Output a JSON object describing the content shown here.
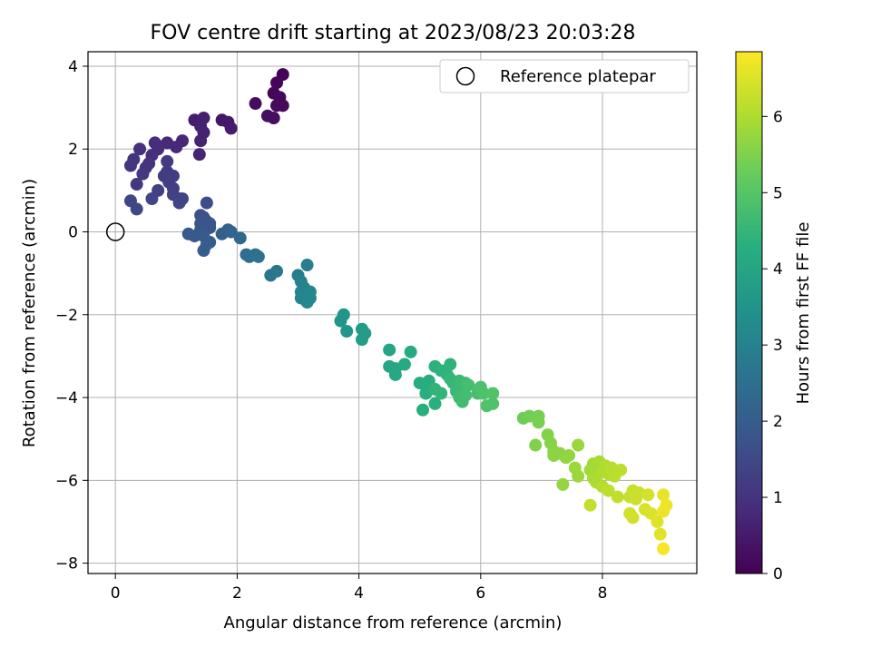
{
  "chart_data": {
    "type": "scatter",
    "title": "FOV centre drift starting at 2023/08/23 20:03:28",
    "xlabel": "Angular distance from reference (arcmin)",
    "ylabel": "Rotation from reference (arcmin)",
    "xlim": [
      -0.45,
      9.55
    ],
    "ylim": [
      -8.25,
      4.35
    ],
    "xticks": [
      0,
      2,
      4,
      6,
      8
    ],
    "yticks": [
      -8,
      -6,
      -4,
      -2,
      0,
      2,
      4
    ],
    "x_tick_labels": [
      "0",
      "2",
      "4",
      "6",
      "8"
    ],
    "y_tick_labels": [
      "−8",
      "−6",
      "−4",
      "−2",
      "0",
      "2",
      "4"
    ],
    "grid": true,
    "legend": {
      "placement": "top-right",
      "entries": [
        "Reference platepar"
      ]
    },
    "reference_point": {
      "x": 0,
      "y": 0,
      "label": "Reference platepar"
    },
    "colorbar": {
      "label": "Hours from first FF file",
      "range": [
        0,
        6.85
      ],
      "ticks": [
        0,
        1,
        2,
        3,
        4,
        5,
        6
      ],
      "tick_labels": [
        "0",
        "1",
        "2",
        "3",
        "4",
        "5",
        "6"
      ],
      "colormap": "viridis"
    },
    "points": [
      {
        "x": 2.75,
        "y": 3.8,
        "c": 0.05
      },
      {
        "x": 2.65,
        "y": 3.6,
        "c": 0.1
      },
      {
        "x": 2.6,
        "y": 3.35,
        "c": 0.12
      },
      {
        "x": 2.7,
        "y": 3.25,
        "c": 0.15
      },
      {
        "x": 2.75,
        "y": 3.05,
        "c": 0.18
      },
      {
        "x": 2.65,
        "y": 3.05,
        "c": 0.2
      },
      {
        "x": 2.3,
        "y": 3.1,
        "c": 0.22
      },
      {
        "x": 2.5,
        "y": 2.8,
        "c": 0.25
      },
      {
        "x": 2.6,
        "y": 2.75,
        "c": 0.28
      },
      {
        "x": 1.75,
        "y": 2.7,
        "c": 0.4
      },
      {
        "x": 1.85,
        "y": 2.65,
        "c": 0.45
      },
      {
        "x": 1.9,
        "y": 2.5,
        "c": 0.5
      },
      {
        "x": 1.3,
        "y": 2.7,
        "c": 0.55
      },
      {
        "x": 1.45,
        "y": 2.75,
        "c": 0.6
      },
      {
        "x": 1.4,
        "y": 2.55,
        "c": 0.62
      },
      {
        "x": 1.45,
        "y": 2.4,
        "c": 0.65
      },
      {
        "x": 1.4,
        "y": 2.2,
        "c": 0.68
      },
      {
        "x": 1.38,
        "y": 1.87,
        "c": 0.7
      },
      {
        "x": 1.1,
        "y": 2.2,
        "c": 0.75
      },
      {
        "x": 1.0,
        "y": 2.05,
        "c": 0.78
      },
      {
        "x": 0.85,
        "y": 2.15,
        "c": 0.8
      },
      {
        "x": 0.65,
        "y": 2.15,
        "c": 0.85
      },
      {
        "x": 0.7,
        "y": 2.0,
        "c": 0.88
      },
      {
        "x": 0.6,
        "y": 1.85,
        "c": 0.9
      },
      {
        "x": 0.4,
        "y": 2.0,
        "c": 0.95
      },
      {
        "x": 0.55,
        "y": 1.65,
        "c": 1.0
      },
      {
        "x": 0.5,
        "y": 1.55,
        "c": 1.02
      },
      {
        "x": 0.3,
        "y": 1.75,
        "c": 1.05
      },
      {
        "x": 0.25,
        "y": 1.6,
        "c": 1.08
      },
      {
        "x": 0.45,
        "y": 1.4,
        "c": 1.1
      },
      {
        "x": 0.35,
        "y": 1.15,
        "c": 1.12
      },
      {
        "x": 0.85,
        "y": 1.7,
        "c": 1.15
      },
      {
        "x": 0.85,
        "y": 1.45,
        "c": 1.18
      },
      {
        "x": 0.8,
        "y": 1.35,
        "c": 1.2
      },
      {
        "x": 0.95,
        "y": 1.35,
        "c": 1.22
      },
      {
        "x": 0.88,
        "y": 1.2,
        "c": 1.25
      },
      {
        "x": 0.95,
        "y": 1.05,
        "c": 1.28
      },
      {
        "x": 0.7,
        "y": 1.0,
        "c": 1.3
      },
      {
        "x": 0.95,
        "y": 0.9,
        "c": 1.32
      },
      {
        "x": 1.05,
        "y": 0.8,
        "c": 1.35
      },
      {
        "x": 1.1,
        "y": 0.8,
        "c": 1.38
      },
      {
        "x": 1.05,
        "y": 0.7,
        "c": 1.4
      },
      {
        "x": 0.6,
        "y": 0.8,
        "c": 1.42
      },
      {
        "x": 0.25,
        "y": 0.75,
        "c": 1.45
      },
      {
        "x": 0.35,
        "y": 0.55,
        "c": 1.48
      },
      {
        "x": 1.5,
        "y": 0.7,
        "c": 1.6
      },
      {
        "x": 1.4,
        "y": 0.4,
        "c": 1.7
      },
      {
        "x": 1.45,
        "y": 0.35,
        "c": 1.72
      },
      {
        "x": 1.5,
        "y": 0.25,
        "c": 1.75
      },
      {
        "x": 1.4,
        "y": 0.2,
        "c": 1.78
      },
      {
        "x": 1.55,
        "y": 0.2,
        "c": 1.8
      },
      {
        "x": 1.55,
        "y": 0.1,
        "c": 1.82
      },
      {
        "x": 1.45,
        "y": 0.05,
        "c": 1.85
      },
      {
        "x": 1.4,
        "y": 0.05,
        "c": 1.88
      },
      {
        "x": 1.2,
        "y": -0.05,
        "c": 1.9
      },
      {
        "x": 1.3,
        "y": -0.1,
        "c": 1.92
      },
      {
        "x": 1.45,
        "y": -0.1,
        "c": 1.95
      },
      {
        "x": 1.55,
        "y": -0.25,
        "c": 1.98
      },
      {
        "x": 1.5,
        "y": -0.3,
        "c": 2.0
      },
      {
        "x": 1.45,
        "y": -0.45,
        "c": 2.02
      },
      {
        "x": 1.75,
        "y": -0.05,
        "c": 2.1
      },
      {
        "x": 1.85,
        "y": 0.05,
        "c": 2.15
      },
      {
        "x": 1.9,
        "y": 0.0,
        "c": 2.2
      },
      {
        "x": 2.05,
        "y": -0.15,
        "c": 2.3
      },
      {
        "x": 2.15,
        "y": -0.55,
        "c": 2.4
      },
      {
        "x": 2.2,
        "y": -0.6,
        "c": 2.45
      },
      {
        "x": 2.3,
        "y": -0.55,
        "c": 2.5
      },
      {
        "x": 2.35,
        "y": -0.6,
        "c": 2.55
      },
      {
        "x": 2.55,
        "y": -1.05,
        "c": 2.65
      },
      {
        "x": 2.65,
        "y": -0.95,
        "c": 2.7
      },
      {
        "x": 3.0,
        "y": -1.05,
        "c": 2.85
      },
      {
        "x": 3.15,
        "y": -0.8,
        "c": 2.9
      },
      {
        "x": 3.05,
        "y": -1.2,
        "c": 2.95
      },
      {
        "x": 3.1,
        "y": -1.35,
        "c": 3.0
      },
      {
        "x": 3.05,
        "y": -1.45,
        "c": 3.02
      },
      {
        "x": 3.15,
        "y": -1.5,
        "c": 3.05
      },
      {
        "x": 3.2,
        "y": -1.6,
        "c": 3.08
      },
      {
        "x": 3.05,
        "y": -1.6,
        "c": 3.1
      },
      {
        "x": 3.15,
        "y": -1.7,
        "c": 3.12
      },
      {
        "x": 3.2,
        "y": -1.45,
        "c": 3.14
      },
      {
        "x": 3.7,
        "y": -2.15,
        "c": 3.5
      },
      {
        "x": 3.75,
        "y": -2.0,
        "c": 3.55
      },
      {
        "x": 3.8,
        "y": -2.4,
        "c": 3.58
      },
      {
        "x": 4.05,
        "y": -2.35,
        "c": 3.7
      },
      {
        "x": 4.1,
        "y": -2.45,
        "c": 3.75
      },
      {
        "x": 4.05,
        "y": -2.6,
        "c": 3.78
      },
      {
        "x": 4.5,
        "y": -2.85,
        "c": 4.0
      },
      {
        "x": 4.5,
        "y": -3.25,
        "c": 4.05
      },
      {
        "x": 4.6,
        "y": -3.3,
        "c": 4.08
      },
      {
        "x": 4.6,
        "y": -3.45,
        "c": 4.1
      },
      {
        "x": 4.75,
        "y": -3.2,
        "c": 4.12
      },
      {
        "x": 4.85,
        "y": -2.9,
        "c": 4.15
      },
      {
        "x": 5.0,
        "y": -3.65,
        "c": 4.2
      },
      {
        "x": 5.1,
        "y": -3.7,
        "c": 4.22
      },
      {
        "x": 5.15,
        "y": -3.6,
        "c": 4.25
      },
      {
        "x": 5.1,
        "y": -3.9,
        "c": 4.28
      },
      {
        "x": 5.05,
        "y": -4.3,
        "c": 4.3
      },
      {
        "x": 5.25,
        "y": -4.15,
        "c": 4.32
      },
      {
        "x": 5.25,
        "y": -3.25,
        "c": 4.35
      },
      {
        "x": 5.35,
        "y": -3.35,
        "c": 4.38
      },
      {
        "x": 5.45,
        "y": -3.45,
        "c": 4.4
      },
      {
        "x": 5.5,
        "y": -3.2,
        "c": 4.42
      },
      {
        "x": 5.25,
        "y": -3.8,
        "c": 4.45
      },
      {
        "x": 5.35,
        "y": -3.9,
        "c": 4.48
      },
      {
        "x": 5.5,
        "y": -3.55,
        "c": 4.5
      },
      {
        "x": 5.55,
        "y": -3.65,
        "c": 4.52
      },
      {
        "x": 5.6,
        "y": -3.7,
        "c": 4.55
      },
      {
        "x": 5.65,
        "y": -3.6,
        "c": 4.58
      },
      {
        "x": 5.6,
        "y": -3.85,
        "c": 4.6
      },
      {
        "x": 5.7,
        "y": -3.75,
        "c": 4.62
      },
      {
        "x": 5.75,
        "y": -3.65,
        "c": 4.65
      },
      {
        "x": 5.65,
        "y": -4.0,
        "c": 4.68
      },
      {
        "x": 5.7,
        "y": -4.1,
        "c": 4.7
      },
      {
        "x": 5.75,
        "y": -3.95,
        "c": 4.72
      },
      {
        "x": 5.8,
        "y": -3.7,
        "c": 4.75
      },
      {
        "x": 5.95,
        "y": -3.9,
        "c": 4.8
      },
      {
        "x": 6.0,
        "y": -3.75,
        "c": 4.85
      },
      {
        "x": 6.05,
        "y": -3.9,
        "c": 4.88
      },
      {
        "x": 6.1,
        "y": -4.2,
        "c": 4.9
      },
      {
        "x": 6.2,
        "y": -4.15,
        "c": 4.92
      },
      {
        "x": 6.2,
        "y": -3.9,
        "c": 4.95
      },
      {
        "x": 6.7,
        "y": -4.5,
        "c": 5.3
      },
      {
        "x": 6.8,
        "y": -4.45,
        "c": 5.35
      },
      {
        "x": 6.95,
        "y": -4.45,
        "c": 5.4
      },
      {
        "x": 6.95,
        "y": -4.6,
        "c": 5.42
      },
      {
        "x": 6.9,
        "y": -5.15,
        "c": 5.5
      },
      {
        "x": 7.1,
        "y": -4.9,
        "c": 5.55
      },
      {
        "x": 7.15,
        "y": -5.1,
        "c": 5.58
      },
      {
        "x": 7.2,
        "y": -5.3,
        "c": 5.6
      },
      {
        "x": 7.2,
        "y": -5.4,
        "c": 5.62
      },
      {
        "x": 7.3,
        "y": -5.35,
        "c": 5.65
      },
      {
        "x": 7.4,
        "y": -5.45,
        "c": 5.68
      },
      {
        "x": 7.45,
        "y": -5.4,
        "c": 5.7
      },
      {
        "x": 7.35,
        "y": -6.1,
        "c": 5.72
      },
      {
        "x": 7.6,
        "y": -5.15,
        "c": 5.78
      },
      {
        "x": 7.55,
        "y": -5.7,
        "c": 5.8
      },
      {
        "x": 7.6,
        "y": -5.9,
        "c": 5.82
      },
      {
        "x": 7.8,
        "y": -5.75,
        "c": 5.85
      },
      {
        "x": 7.85,
        "y": -5.6,
        "c": 5.88
      },
      {
        "x": 7.9,
        "y": -5.7,
        "c": 5.9
      },
      {
        "x": 7.95,
        "y": -5.55,
        "c": 5.92
      },
      {
        "x": 7.85,
        "y": -5.95,
        "c": 5.95
      },
      {
        "x": 7.9,
        "y": -6.05,
        "c": 5.98
      },
      {
        "x": 8.0,
        "y": -5.8,
        "c": 6.0
      },
      {
        "x": 8.05,
        "y": -5.65,
        "c": 6.02
      },
      {
        "x": 8.1,
        "y": -5.85,
        "c": 6.05
      },
      {
        "x": 8.0,
        "y": -6.15,
        "c": 6.08
      },
      {
        "x": 8.15,
        "y": -5.7,
        "c": 6.1
      },
      {
        "x": 8.2,
        "y": -5.9,
        "c": 6.12
      },
      {
        "x": 8.3,
        "y": -5.75,
        "c": 6.15
      },
      {
        "x": 8.1,
        "y": -6.25,
        "c": 6.18
      },
      {
        "x": 8.25,
        "y": -6.4,
        "c": 6.2
      },
      {
        "x": 7.8,
        "y": -6.6,
        "c": 6.22
      },
      {
        "x": 8.45,
        "y": -6.4,
        "c": 6.25
      },
      {
        "x": 8.5,
        "y": -6.25,
        "c": 6.28
      },
      {
        "x": 8.55,
        "y": -6.45,
        "c": 6.3
      },
      {
        "x": 8.6,
        "y": -6.3,
        "c": 6.32
      },
      {
        "x": 8.45,
        "y": -6.8,
        "c": 6.35
      },
      {
        "x": 8.5,
        "y": -6.9,
        "c": 6.38
      },
      {
        "x": 8.75,
        "y": -6.35,
        "c": 6.4
      },
      {
        "x": 8.7,
        "y": -6.7,
        "c": 6.45
      },
      {
        "x": 8.8,
        "y": -6.8,
        "c": 6.48
      },
      {
        "x": 8.9,
        "y": -7.0,
        "c": 6.5
      },
      {
        "x": 8.95,
        "y": -7.3,
        "c": 6.55
      },
      {
        "x": 9.0,
        "y": -6.35,
        "c": 6.6
      },
      {
        "x": 9.0,
        "y": -6.75,
        "c": 6.65
      },
      {
        "x": 9.05,
        "y": -6.6,
        "c": 6.7
      },
      {
        "x": 9.0,
        "y": -7.65,
        "c": 6.8
      }
    ]
  }
}
